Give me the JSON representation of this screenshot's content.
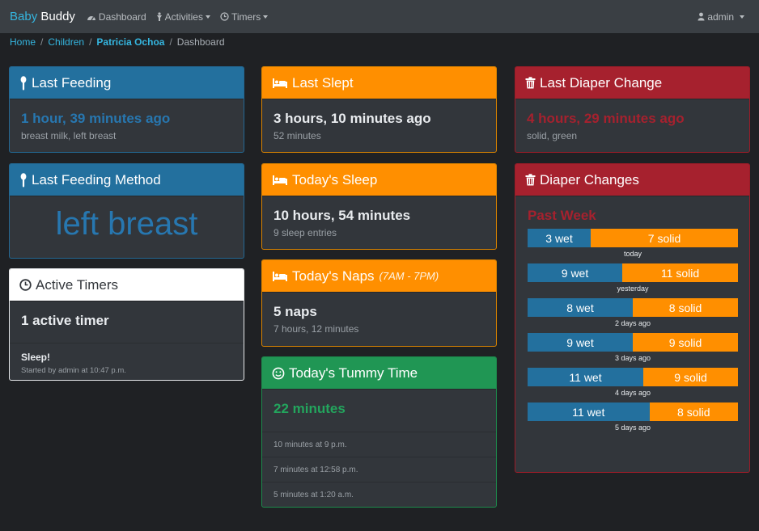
{
  "nav": {
    "brand_a": "Baby",
    "brand_b": "Buddy",
    "dashboard": "Dashboard",
    "activities": "Activities",
    "timers": "Timers",
    "user": "admin"
  },
  "breadcrumb": {
    "home": "Home",
    "children": "Children",
    "child": "Patricia Ochoa",
    "current": "Dashboard"
  },
  "last_feeding": {
    "title": "Last Feeding",
    "value": "1 hour, 39 minutes ago",
    "detail": "breast milk, left breast"
  },
  "last_feeding_method": {
    "title": "Last Feeding Method",
    "value": "left breast"
  },
  "active_timers": {
    "title": "Active Timers",
    "count": "1 active timer",
    "timer_name": "Sleep!",
    "timer_detail": "Started by admin at 10:47 p.m."
  },
  "last_slept": {
    "title": "Last Slept",
    "value": "3 hours, 10 minutes ago",
    "detail": "52 minutes"
  },
  "todays_sleep": {
    "title": "Today's Sleep",
    "value": "10 hours, 54 minutes",
    "detail": "9 sleep entries"
  },
  "todays_naps": {
    "title": "Today's Naps",
    "subtitle": "(7AM - 7PM)",
    "value": "5 naps",
    "detail": "7 hours, 12 minutes"
  },
  "tummy_time": {
    "title": "Today's Tummy Time",
    "value": "22 minutes",
    "entries": [
      "10 minutes at 9 p.m.",
      "7 minutes at 12:58 p.m.",
      "5 minutes at 1:20 a.m."
    ]
  },
  "last_diaper": {
    "title": "Last Diaper Change",
    "value": "4 hours, 29 minutes ago",
    "detail": "solid, green"
  },
  "diaper_changes": {
    "title": "Diaper Changes",
    "period": "Past Week",
    "days": [
      {
        "wet": "3 wet",
        "solid": "7 solid",
        "wet_n": 3,
        "solid_n": 7,
        "label": "today"
      },
      {
        "wet": "9 wet",
        "solid": "11 solid",
        "wet_n": 9,
        "solid_n": 11,
        "label": "yesterday"
      },
      {
        "wet": "8 wet",
        "solid": "8 solid",
        "wet_n": 8,
        "solid_n": 8,
        "label": "2 days ago"
      },
      {
        "wet": "9 wet",
        "solid": "9 solid",
        "wet_n": 9,
        "solid_n": 9,
        "label": "3 days ago"
      },
      {
        "wet": "11 wet",
        "solid": "9 solid",
        "wet_n": 11,
        "solid_n": 9,
        "label": "4 days ago"
      },
      {
        "wet": "11 wet",
        "solid": "8 solid",
        "wet_n": 11,
        "solid_n": 8,
        "label": "5 days ago"
      }
    ]
  },
  "colors": {
    "feeding": "#23709e",
    "sleep": "#ff8f00",
    "diaper": "#a6212e",
    "tummy": "#209654"
  }
}
